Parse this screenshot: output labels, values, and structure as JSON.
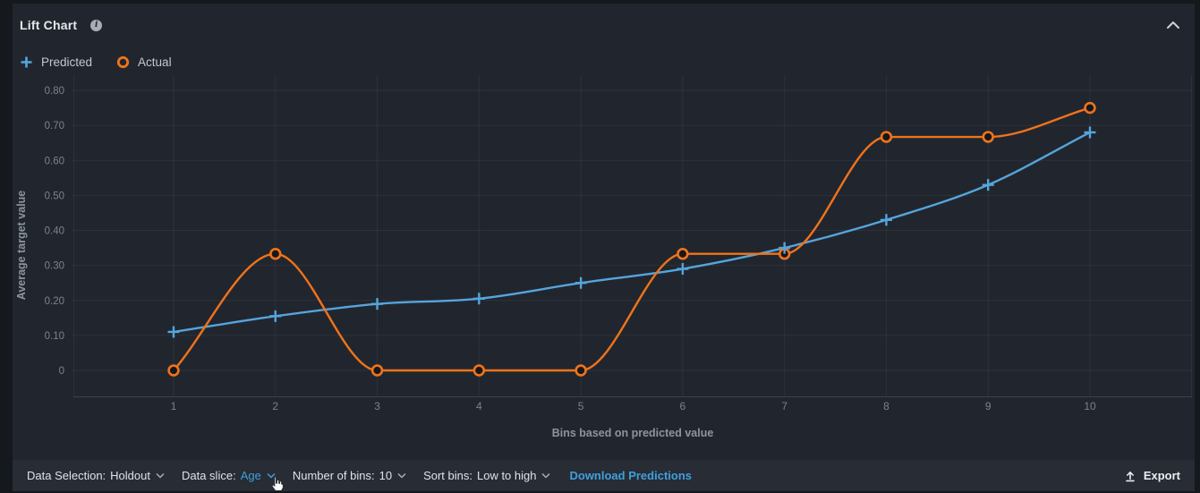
{
  "header": {
    "title": "Lift Chart"
  },
  "icons": {
    "header_info": "info-circle",
    "collapse": "chevron-up",
    "dropdown": "chevron-down",
    "export": "arrow-up-from-line",
    "cursor": "hand-pointer"
  },
  "colors": {
    "page_bg": "#15181d",
    "panel_bg": "#21262e",
    "footer_bg": "#272c35",
    "accent_blue": "#3fa0dc",
    "predicted_blue": "#55a5dc",
    "actual_orange": "#f1731a",
    "grid_line": "rgba(255,255,255,0.055)",
    "axis_line": "#3b414c",
    "tick_text": "#7b828d",
    "axis_title_text": "#8d949e"
  },
  "chart_data": {
    "type": "line",
    "curve": "monotone",
    "grid": true,
    "legend_position": "top-left",
    "categories": [
      "1",
      "2",
      "3",
      "4",
      "5",
      "6",
      "7",
      "8",
      "9",
      "10"
    ],
    "series": [
      {
        "name": "Predicted",
        "marker": "plus",
        "color": "#55a5dc",
        "values": [
          0.11,
          0.155,
          0.19,
          0.205,
          0.25,
          0.29,
          0.35,
          0.43,
          0.53,
          0.68
        ]
      },
      {
        "name": "Actual",
        "marker": "circle",
        "color": "#f1731a",
        "values": [
          0,
          0.333,
          0,
          0,
          0,
          0.333,
          0.333,
          0.667,
          0.667,
          0.75
        ]
      }
    ],
    "xlabel": "Bins based on predicted value",
    "ylabel": "Average target value",
    "ylim": [
      0,
      0.8
    ],
    "ytick_labels": [
      "0.80",
      "0.70",
      "0.60",
      "0.50",
      "0.40",
      "0.30",
      "0.20",
      "0.10",
      "0"
    ]
  },
  "footer": {
    "data_selection": {
      "label": "Data Selection:",
      "value": "Holdout"
    },
    "data_slice": {
      "label": "Data slice:",
      "value": "Age"
    },
    "number_of_bins": {
      "label": "Number of bins:",
      "value": "10"
    },
    "sort_bins": {
      "label": "Sort bins:",
      "value": "Low to high"
    },
    "download_label": "Download Predictions",
    "export_label": "Export"
  }
}
